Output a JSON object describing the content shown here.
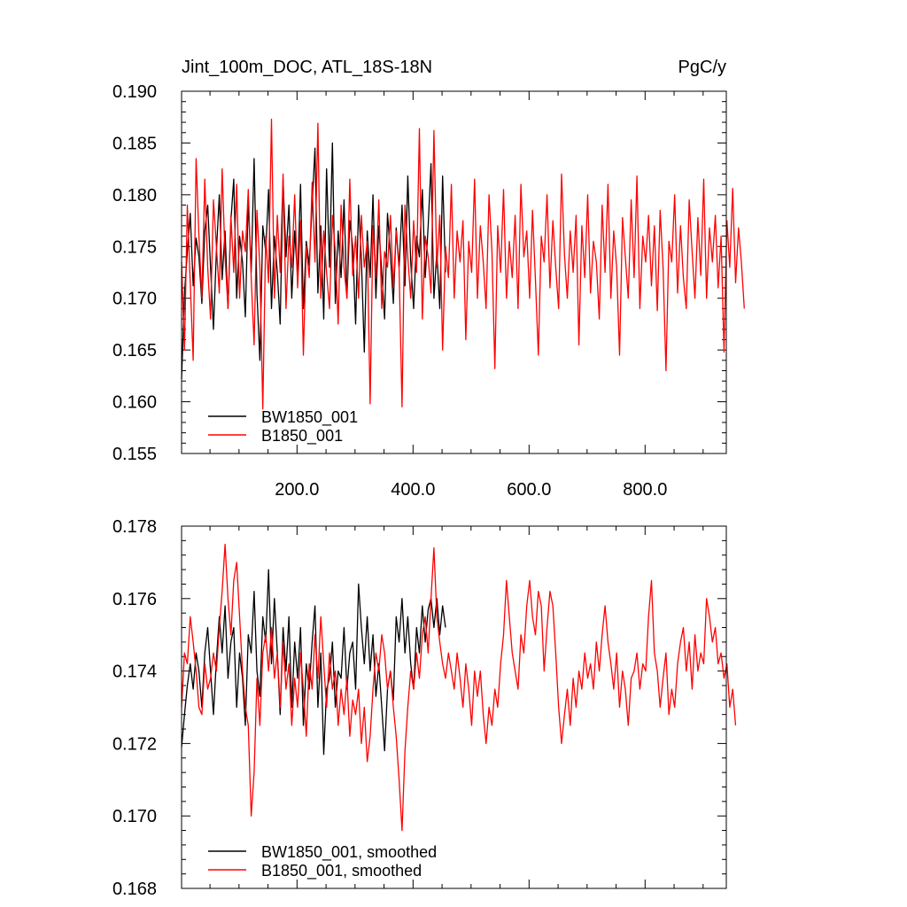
{
  "chart_data": [
    {
      "type": "line",
      "title": "Jint_100m_DOC, ATL_18S-18N",
      "units": "PgC/y",
      "xlim": [
        1,
        940
      ],
      "ylim": [
        0.155,
        0.19
      ],
      "xticks": [
        200,
        400,
        600,
        800
      ],
      "xtick_labels": [
        "200.0",
        "400.0",
        "600.0",
        "800.0"
      ],
      "yticks": [
        0.155,
        0.16,
        0.165,
        0.17,
        0.175,
        0.18,
        0.185,
        0.19
      ],
      "ytick_labels": [
        "0.155",
        "0.160",
        "0.165",
        "0.170",
        "0.175",
        "0.180",
        "0.185",
        "0.190"
      ],
      "legend_position": "bottom-left",
      "series": [
        {
          "name": "BW1850_001",
          "color": "#000000",
          "x_start": 1,
          "x_step": 5,
          "values": [
            0.1622,
            0.1705,
            0.1745,
            0.1782,
            0.1712,
            0.1758,
            0.174,
            0.1695,
            0.1765,
            0.179,
            0.173,
            0.167,
            0.1745,
            0.18,
            0.1718,
            0.1765,
            0.169,
            0.1775,
            0.1815,
            0.17,
            0.176,
            0.1735,
            0.1682,
            0.1795,
            0.1725,
            0.1835,
            0.1705,
            0.164,
            0.177,
            0.1745,
            0.1805,
            0.169,
            0.176,
            0.1725,
            0.1675,
            0.1815,
            0.174,
            0.179,
            0.17,
            0.1765,
            0.172,
            0.181,
            0.169,
            0.1755,
            0.1732,
            0.179,
            0.1845,
            0.1705,
            0.177,
            0.168,
            0.1825,
            0.173,
            0.185,
            0.1695,
            0.1765,
            0.172,
            0.1795,
            0.17,
            0.1775,
            0.175,
            0.1675,
            0.179,
            0.1738,
            0.1648,
            0.1765,
            0.172,
            0.18,
            0.17,
            0.177,
            0.1725,
            0.168,
            0.1782,
            0.1742,
            0.1695,
            0.1768,
            0.173,
            0.179,
            0.1712,
            0.1818,
            0.1735,
            0.169,
            0.176,
            0.174,
            0.1805,
            0.172,
            0.177,
            0.183,
            0.17,
            0.1745,
            0.169,
            0.1818,
            0.1725
          ]
        },
        {
          "name": "B1850_001",
          "color": "#ff0000",
          "x_start": 1,
          "x_step": 5,
          "values": [
            0.1735,
            0.165,
            0.179,
            0.1715,
            0.164,
            0.1835,
            0.176,
            0.17,
            0.1815,
            0.173,
            0.168,
            0.1795,
            0.175,
            0.1705,
            0.1825,
            0.174,
            0.169,
            0.178,
            0.1725,
            0.181,
            0.17,
            0.1765,
            0.1745,
            0.1805,
            0.172,
            0.1655,
            0.1785,
            0.173,
            0.1593,
            0.176,
            0.1715,
            0.1873,
            0.17,
            0.178,
            0.1725,
            0.182,
            0.169,
            0.176,
            0.173,
            0.18,
            0.171,
            0.1775,
            0.1645,
            0.175,
            0.172,
            0.1812,
            0.1735,
            0.1869,
            0.17,
            0.1765,
            0.1725,
            0.169,
            0.178,
            0.1745,
            0.1675,
            0.179,
            0.173,
            0.17,
            0.1815,
            0.1722,
            0.176,
            0.17,
            0.178,
            0.173,
            0.1755,
            0.1598,
            0.177,
            0.172,
            0.1795,
            0.169,
            0.1745,
            0.173,
            0.178,
            0.171,
            0.1765,
            0.1728,
            0.1595,
            0.179,
            0.174,
            0.17,
            0.1775,
            0.1725,
            0.1864,
            0.168,
            0.176,
            0.174,
            0.1705,
            0.1862,
            0.173,
            0.178,
            0.165,
            0.175,
            0.172,
            0.181,
            0.17,
            0.1765,
            0.1735,
            0.1775,
            0.166,
            0.1755,
            0.1725,
            0.1815,
            0.17,
            0.177,
            0.1735,
            0.169,
            0.18,
            0.1745,
            0.1632,
            0.177,
            0.1725,
            0.1805,
            0.17,
            0.1755,
            0.172,
            0.178,
            0.169,
            0.181,
            0.174,
            0.1765,
            0.17,
            0.1785,
            0.1718,
            0.1645,
            0.176,
            0.1735,
            0.18,
            0.171,
            0.1775,
            0.173,
            0.169,
            0.182,
            0.1742,
            0.17,
            0.1765,
            0.1725,
            0.178,
            0.1655,
            0.177,
            0.172,
            0.18,
            0.1705,
            0.1755,
            0.1735,
            0.168,
            0.179,
            0.1725,
            0.181,
            0.17,
            0.1765,
            0.173,
            0.1645,
            0.1778,
            0.174,
            0.17,
            0.1795,
            0.172,
            0.1818,
            0.169,
            0.176,
            0.1735,
            0.178,
            0.1712,
            0.177,
            0.1688,
            0.1785,
            0.173,
            0.163,
            0.1755,
            0.1735,
            0.18,
            0.1705,
            0.177,
            0.172,
            0.169,
            0.1795,
            0.1745,
            0.17,
            0.1778,
            0.1722,
            0.1815,
            0.17,
            0.1768,
            0.1735,
            0.178,
            0.171,
            0.176,
            0.1648,
            0.1775,
            0.173,
            0.1806,
            0.1715,
            0.1768,
            0.1735,
            0.169
          ]
        }
      ]
    },
    {
      "type": "line",
      "xlim": [
        1,
        940
      ],
      "ylim": [
        0.168,
        0.178
      ],
      "xticks": [
        200,
        400,
        600,
        800
      ],
      "yticks": [
        0.168,
        0.17,
        0.172,
        0.174,
        0.176,
        0.178
      ],
      "ytick_labels": [
        "0.168",
        "0.170",
        "0.172",
        "0.174",
        "0.176",
        "0.178"
      ],
      "legend_position": "bottom-left",
      "series": [
        {
          "name": "BW1850_001, smoothed",
          "color": "#000000",
          "x_start": 1,
          "x_step": 5,
          "values": [
            0.1719,
            0.1728,
            0.1736,
            0.1742,
            0.1735,
            0.1745,
            0.174,
            0.173,
            0.1745,
            0.1752,
            0.174,
            0.1728,
            0.1743,
            0.1755,
            0.1745,
            0.1758,
            0.1738,
            0.1748,
            0.1752,
            0.173,
            0.1745,
            0.1738,
            0.1725,
            0.175,
            0.1745,
            0.1762,
            0.174,
            0.1733,
            0.1755,
            0.1748,
            0.1768,
            0.1742,
            0.176,
            0.1745,
            0.1728,
            0.1752,
            0.174,
            0.1755,
            0.173,
            0.1748,
            0.1738,
            0.1752,
            0.1725,
            0.1742,
            0.1735,
            0.1748,
            0.1758,
            0.173,
            0.1745,
            0.1717,
            0.1735,
            0.1738,
            0.1748,
            0.173,
            0.174,
            0.1738,
            0.1752,
            0.1735,
            0.1745,
            0.1748,
            0.1735,
            0.1764,
            0.1752,
            0.1742,
            0.1755,
            0.174,
            0.175,
            0.1733,
            0.1742,
            0.173,
            0.1718,
            0.1735,
            0.174,
            0.1732,
            0.1755,
            0.1748,
            0.176,
            0.1745,
            0.1755,
            0.1742,
            0.1735,
            0.1752,
            0.1745,
            0.1758,
            0.1748,
            0.1757,
            0.176,
            0.1752,
            0.176,
            0.175,
            0.1758,
            0.1752
          ]
        },
        {
          "name": "B1850_001, smoothed",
          "color": "#ff0000",
          "x_start": 1,
          "x_step": 5,
          "values": [
            0.173,
            0.1745,
            0.1742,
            0.1755,
            0.1748,
            0.174,
            0.173,
            0.1728,
            0.1742,
            0.1735,
            0.1738,
            0.1745,
            0.174,
            0.1752,
            0.1762,
            0.1775,
            0.176,
            0.175,
            0.1765,
            0.177,
            0.1755,
            0.174,
            0.173,
            0.1725,
            0.17,
            0.1712,
            0.1738,
            0.1725,
            0.1745,
            0.175,
            0.174,
            0.1752,
            0.1738,
            0.1745,
            0.173,
            0.1748,
            0.1735,
            0.1742,
            0.1725,
            0.1738,
            0.173,
            0.1745,
            0.1735,
            0.1722,
            0.1742,
            0.1735,
            0.175,
            0.1738,
            0.1755,
            0.1742,
            0.173,
            0.1745,
            0.1735,
            0.174,
            0.1725,
            0.1735,
            0.1728,
            0.1738,
            0.1722,
            0.1732,
            0.1728,
            0.1735,
            0.172,
            0.173,
            0.1715,
            0.1722,
            0.1735,
            0.1745,
            0.174,
            0.175,
            0.1745,
            0.1735,
            0.174,
            0.173,
            0.1722,
            0.171,
            0.1696,
            0.1718,
            0.173,
            0.174,
            0.1735,
            0.1745,
            0.1738,
            0.175,
            0.1755,
            0.1745,
            0.176,
            0.1774,
            0.1755,
            0.1748,
            0.1742,
            0.1738,
            0.1745,
            0.174,
            0.1735,
            0.1745,
            0.1738,
            0.173,
            0.1742,
            0.1735,
            0.1725,
            0.174,
            0.1733,
            0.174,
            0.1728,
            0.172,
            0.173,
            0.1725,
            0.1735,
            0.173,
            0.1742,
            0.175,
            0.1765,
            0.1755,
            0.1745,
            0.174,
            0.1735,
            0.175,
            0.1745,
            0.1758,
            0.1765,
            0.1755,
            0.175,
            0.1762,
            0.1758,
            0.174,
            0.1752,
            0.1762,
            0.1758,
            0.1745,
            0.173,
            0.172,
            0.1728,
            0.1735,
            0.1725,
            0.1738,
            0.173,
            0.174,
            0.1735,
            0.1745,
            0.1738,
            0.1742,
            0.1735,
            0.1748,
            0.174,
            0.175,
            0.1758,
            0.1748,
            0.1742,
            0.1735,
            0.1745,
            0.173,
            0.174,
            0.1735,
            0.1725,
            0.1738,
            0.174,
            0.1745,
            0.1735,
            0.1742,
            0.174,
            0.1755,
            0.1765,
            0.1745,
            0.174,
            0.173,
            0.1738,
            0.1745,
            0.1728,
            0.1735,
            0.173,
            0.1742,
            0.1748,
            0.1752,
            0.174,
            0.1748,
            0.1735,
            0.175,
            0.174,
            0.1745,
            0.1742,
            0.176,
            0.1755,
            0.1748,
            0.1752,
            0.1742,
            0.1745,
            0.1738,
            0.1742,
            0.173,
            0.1735,
            0.1725
          ]
        }
      ]
    }
  ]
}
